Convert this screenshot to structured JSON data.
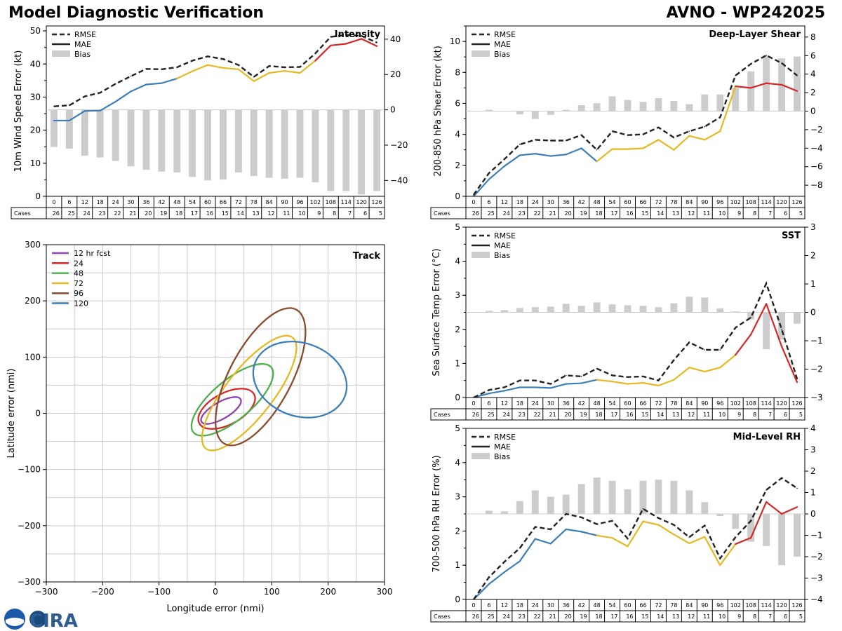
{
  "header": {
    "title": "Model Diagnostic Verification",
    "storm_label": "AVNO - WP242025"
  },
  "legend_labels": {
    "rmse": "RMSE",
    "mae": "MAE",
    "bias": "Bias"
  },
  "colors": {
    "rmse": "#222222",
    "early": "#3a7ebb",
    "mid": "#e6b822",
    "late": "#d62728",
    "bias": "#cccccc",
    "grid": "#cccccc"
  },
  "leads": [
    "0",
    "6",
    "12",
    "18",
    "24",
    "30",
    "36",
    "42",
    "48",
    "54",
    "60",
    "66",
    "72",
    "78",
    "84",
    "90",
    "96",
    "102",
    "108",
    "114",
    "120",
    "126"
  ],
  "cases": [
    "26",
    "25",
    "24",
    "23",
    "22",
    "21",
    "20",
    "19",
    "18",
    "17",
    "16",
    "15",
    "14",
    "13",
    "12",
    "11",
    "10",
    "9",
    "8",
    "7",
    "6",
    "5"
  ],
  "cases_label": "Cases",
  "logo": {
    "text": "CIRA"
  },
  "chart_data": [
    {
      "id": "intensity",
      "type": "line",
      "title": "Intensity",
      "ylabel": "10m Wind Speed Error (kt)",
      "ylim": [
        0,
        51.5
      ],
      "yticks": [
        0,
        10,
        20,
        30,
        40,
        50
      ],
      "y2lim": [
        -49,
        47.5
      ],
      "y2ticks": [
        -40,
        -20,
        0,
        20,
        40
      ],
      "legend": "top-left",
      "rmse": [
        27.2,
        27.5,
        30.2,
        31.3,
        34.0,
        36.3,
        38.5,
        38.4,
        39.0,
        41.0,
        42.3,
        41.5,
        39.7,
        36.1,
        39.4,
        39.0,
        39.1,
        43.2,
        48.2,
        48.8,
        48.5,
        46.5
      ],
      "mae": [
        22.9,
        22.9,
        25.8,
        25.9,
        28.6,
        31.7,
        33.8,
        34.2,
        35.6,
        37.8,
        39.7,
        38.8,
        38.4,
        34.8,
        37.3,
        37.9,
        37.3,
        41.0,
        45.6,
        46.1,
        47.6,
        45.4
      ],
      "bias": [
        -21,
        -22,
        -26,
        -27,
        -29,
        -32,
        -34,
        -35,
        -35.5,
        -38,
        -40,
        -39.5,
        -35.5,
        -37.5,
        -38.5,
        -39,
        -38.5,
        -41,
        -46,
        -46,
        -48,
        -46
      ]
    },
    {
      "id": "shear",
      "type": "line",
      "title": "Deep-Layer Shear",
      "ylabel": "200-850 hPa Shear Error (kt)",
      "ylim": [
        0,
        11
      ],
      "yticks": [
        0,
        2,
        4,
        6,
        8,
        10
      ],
      "y2lim": [
        -9.2,
        9.2
      ],
      "y2ticks": [
        -8,
        -6,
        -4,
        -2,
        0,
        2,
        4,
        6,
        8
      ],
      "legend": "top-left",
      "rmse": [
        0.1,
        1.5,
        2.4,
        3.35,
        3.65,
        3.6,
        3.6,
        3.95,
        3.0,
        4.2,
        3.95,
        4.0,
        4.45,
        3.8,
        4.2,
        4.5,
        5.1,
        7.8,
        8.55,
        9.1,
        8.6,
        7.8
      ],
      "mae": [
        0.0,
        1.1,
        1.95,
        2.65,
        2.75,
        2.6,
        2.7,
        3.1,
        2.25,
        3.05,
        3.05,
        3.1,
        3.65,
        3.0,
        3.9,
        3.65,
        4.2,
        7.1,
        7.0,
        7.3,
        7.2,
        6.8
      ],
      "bias": [
        0,
        0.15,
        0,
        -0.35,
        -0.85,
        -0.4,
        0.15,
        0.65,
        0.85,
        1.6,
        1.2,
        1.0,
        1.4,
        1.1,
        0.75,
        1.8,
        1.8,
        2.5,
        4.3,
        6.0,
        5.7,
        5.9
      ]
    },
    {
      "id": "sst",
      "type": "line",
      "title": "SST",
      "ylabel": "Sea Surface Temp Error (°C)",
      "ylim": [
        0,
        5
      ],
      "yticks": [
        0,
        1,
        2,
        3,
        4,
        5
      ],
      "y2lim": [
        -3,
        3
      ],
      "y2ticks": [
        -3,
        -2,
        -1,
        0,
        1,
        2,
        3
      ],
      "legend": "top-left",
      "rmse": [
        0.0,
        0.22,
        0.3,
        0.5,
        0.5,
        0.4,
        0.65,
        0.62,
        0.85,
        0.65,
        0.6,
        0.62,
        0.5,
        1.1,
        1.62,
        1.4,
        1.4,
        2.05,
        2.35,
        3.35,
        2.0,
        0.55
      ],
      "mae": [
        0.0,
        0.12,
        0.2,
        0.3,
        0.3,
        0.28,
        0.4,
        0.42,
        0.52,
        0.47,
        0.4,
        0.43,
        0.35,
        0.52,
        0.88,
        0.76,
        0.88,
        1.25,
        1.85,
        2.75,
        1.5,
        0.45
      ],
      "bias": [
        0,
        0.05,
        0.08,
        0.15,
        0.18,
        0.2,
        0.3,
        0.23,
        0.35,
        0.28,
        0.25,
        0.23,
        0.18,
        0.32,
        0.55,
        0.52,
        0.14,
        0.03,
        -0.25,
        -1.3,
        -0.95,
        -0.4
      ]
    },
    {
      "id": "rh",
      "type": "line",
      "title": "Mid-Level RH",
      "ylabel": "700-500 hPa RH Error (%)",
      "ylim": [
        0,
        5
      ],
      "yticks": [
        0,
        1,
        2,
        3,
        4,
        5
      ],
      "y2lim": [
        -4,
        4
      ],
      "y2ticks": [
        -4,
        -3,
        -2,
        -1,
        0,
        1,
        2,
        3,
        4
      ],
      "legend": "top-left",
      "rmse": [
        0.0,
        0.65,
        1.1,
        1.5,
        2.12,
        2.05,
        2.5,
        2.4,
        2.2,
        2.3,
        1.78,
        2.65,
        2.38,
        2.18,
        1.82,
        2.16,
        1.2,
        1.82,
        2.3,
        3.2,
        3.55,
        3.25
      ],
      "mae": [
        0.0,
        0.45,
        0.8,
        1.12,
        1.77,
        1.63,
        2.05,
        1.98,
        1.87,
        1.8,
        1.55,
        2.28,
        2.18,
        1.9,
        1.64,
        1.83,
        1.0,
        1.62,
        1.8,
        2.85,
        2.5,
        2.7
      ],
      "bias": [
        0,
        0.15,
        0.12,
        0.6,
        1.1,
        0.8,
        0.9,
        1.4,
        1.7,
        1.55,
        1.15,
        1.55,
        1.6,
        1.55,
        1.1,
        0.55,
        -0.1,
        -0.7,
        -1.3,
        -1.5,
        -2.4,
        -2.0
      ]
    },
    {
      "id": "track",
      "type": "scatter",
      "title": "Track",
      "xlabel": "Longitude error (nmi)",
      "ylabel": "Latitude error (nmi)",
      "xlim": [
        -300,
        300
      ],
      "ylim": [
        -300,
        300
      ],
      "ticks": [
        -300,
        -200,
        -100,
        0,
        100,
        200,
        300
      ],
      "legend": "top-left",
      "ellipses": [
        {
          "label": "12 hr fcst",
          "color": "#8e44ad",
          "cx": 10,
          "cy": 5,
          "rx": 40,
          "ry": 15,
          "angle": 30
        },
        {
          "label": "24",
          "color": "#d62728",
          "cx": 20,
          "cy": 8,
          "rx": 55,
          "ry": 28,
          "angle": 28
        },
        {
          "label": "48",
          "color": "#4daf4a",
          "cx": 30,
          "cy": 24,
          "rx": 90,
          "ry": 35,
          "angle": 40
        },
        {
          "label": "72",
          "color": "#e6b822",
          "cx": 60,
          "cy": 36,
          "rx": 125,
          "ry": 42,
          "angle": 52
        },
        {
          "label": "96",
          "color": "#8b4a2b",
          "cx": 80,
          "cy": 65,
          "rx": 135,
          "ry": 55,
          "angle": 62
        },
        {
          "label": "120",
          "color": "#3a7ebb",
          "cx": 150,
          "cy": 60,
          "rx": 85,
          "ry": 65,
          "angle": -20
        }
      ]
    }
  ]
}
